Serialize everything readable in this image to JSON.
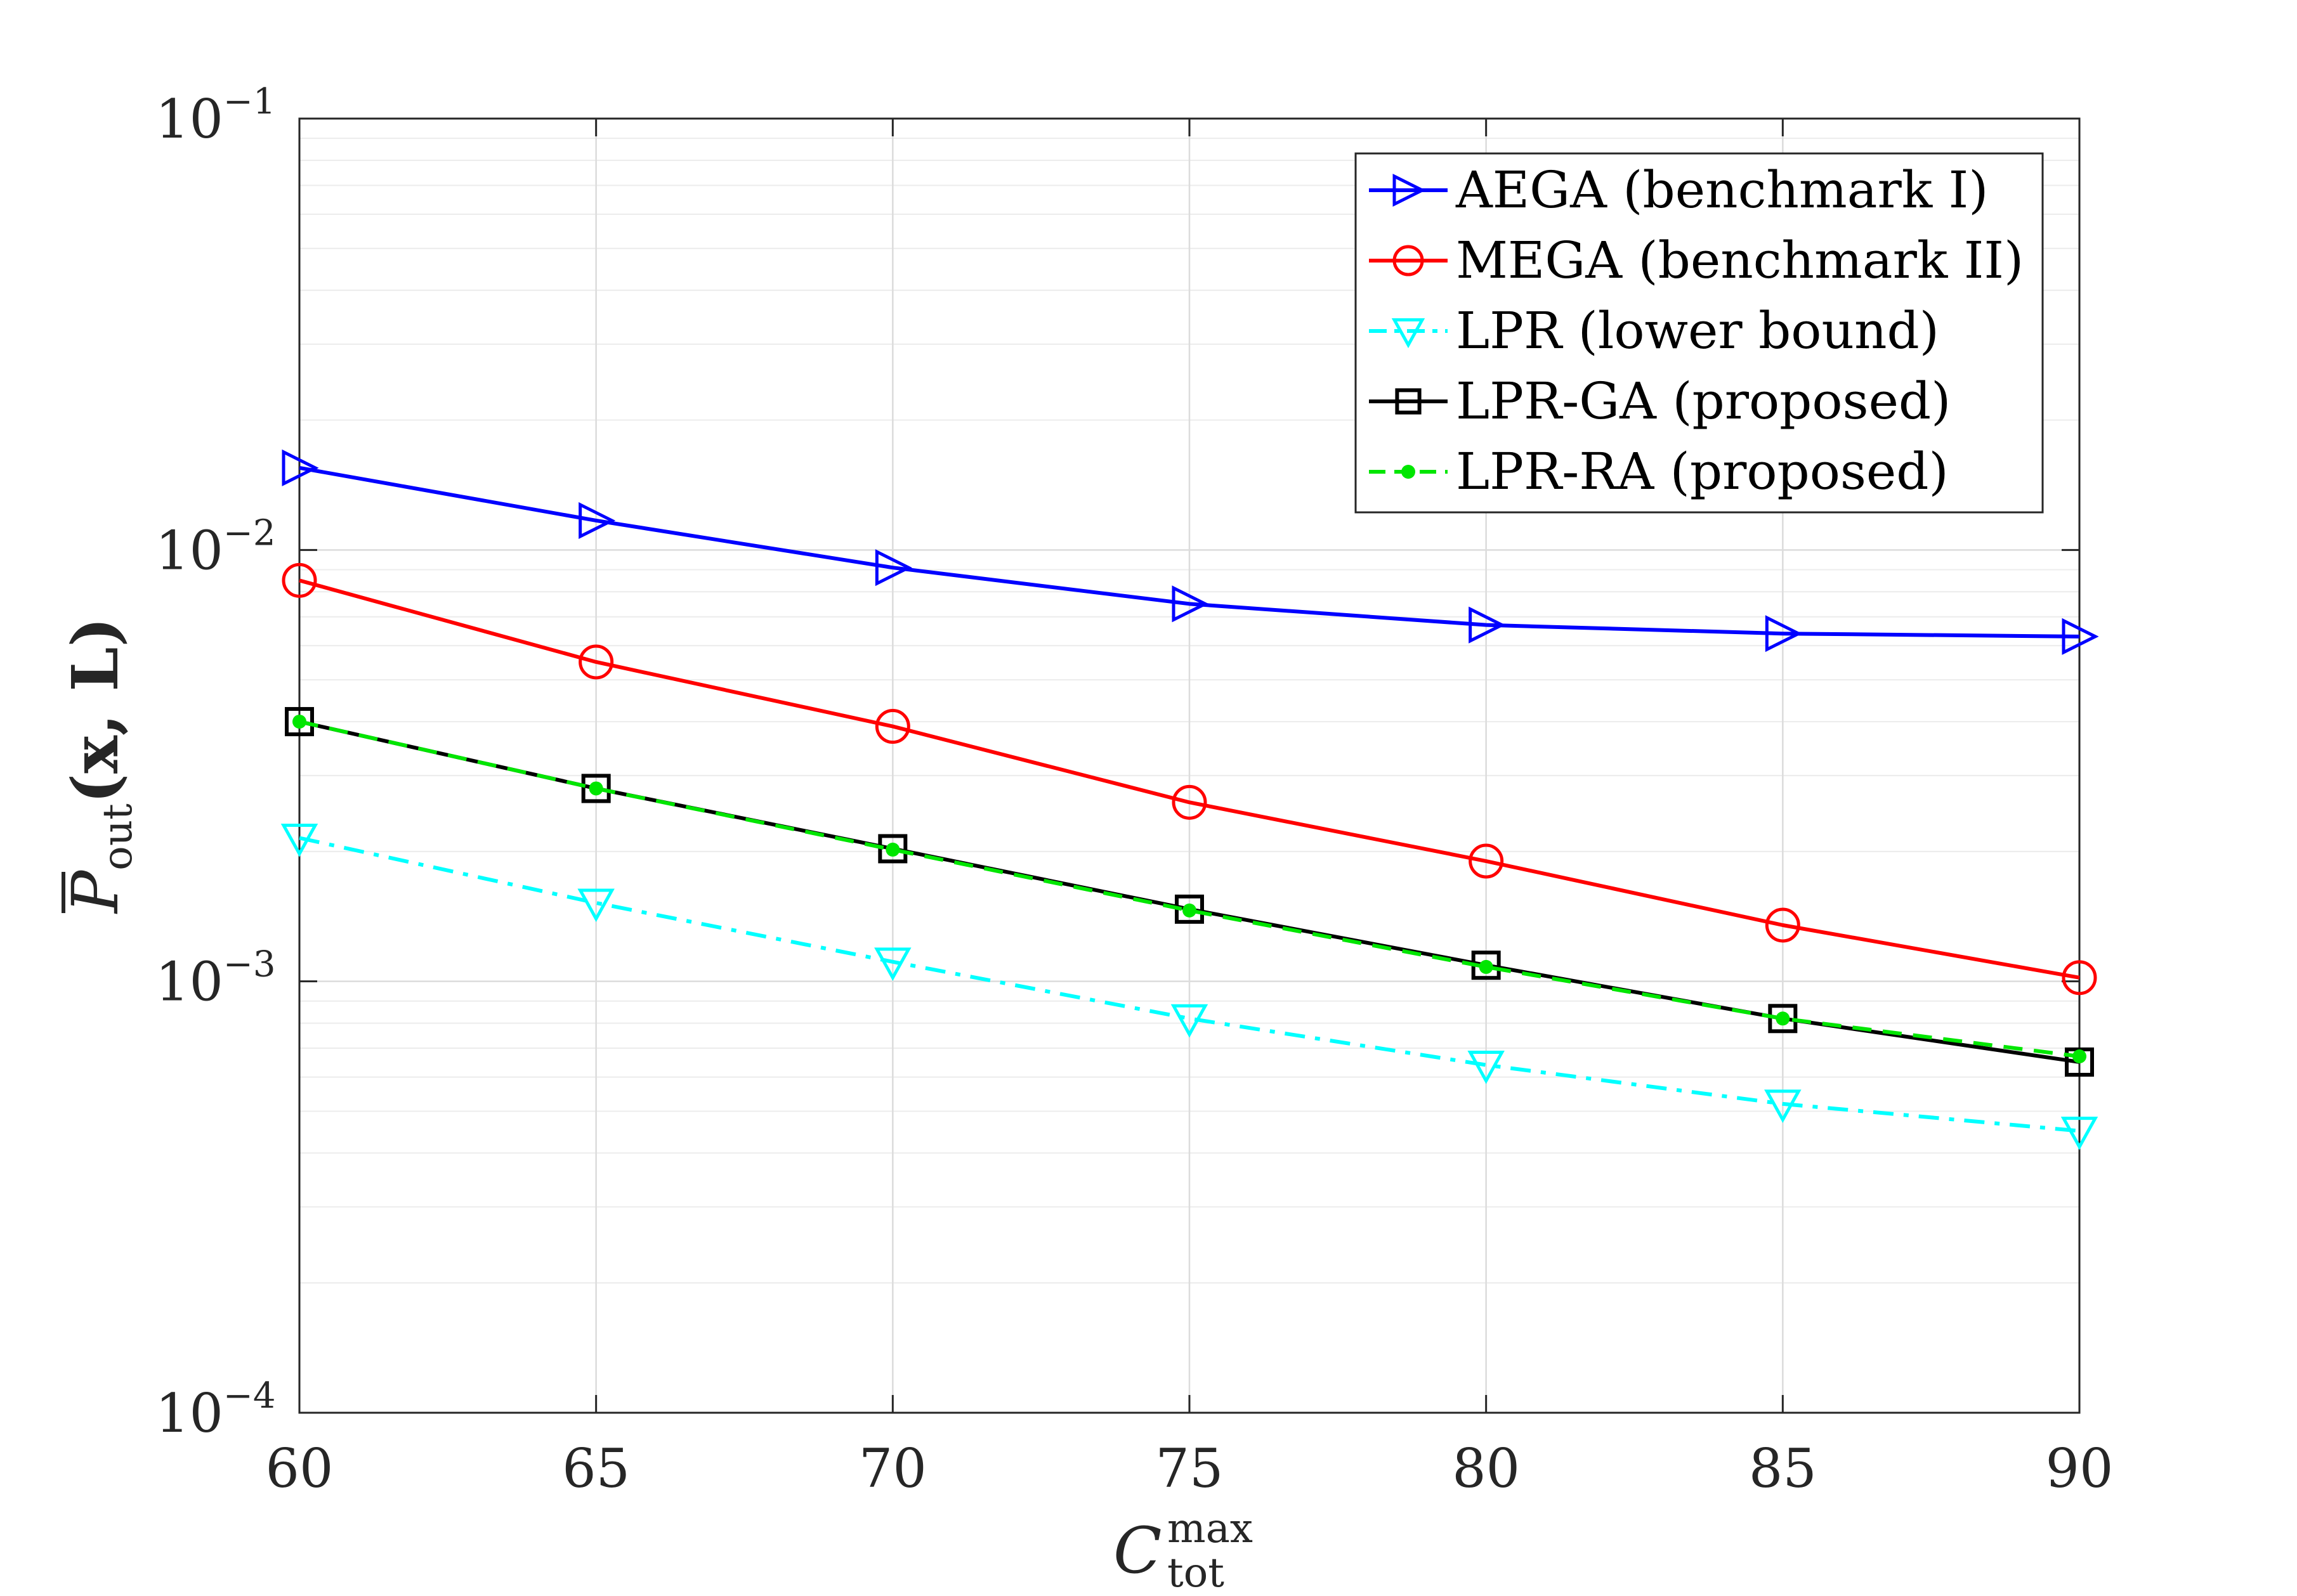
{
  "chart_data": {
    "type": "line",
    "yscale": "log",
    "x": [
      60,
      65,
      70,
      75,
      80,
      85,
      90
    ],
    "xlim": [
      60,
      90
    ],
    "ylim": [
      0.0001,
      0.1
    ],
    "grid": true,
    "legend_position": "top-right",
    "xlabel": {
      "base": "C",
      "sup": "max",
      "sub": "tot"
    },
    "ylabel": {
      "base": "P",
      "sub": "out",
      "args": "(x, L)"
    },
    "xticks": [
      "60",
      "65",
      "70",
      "75",
      "80",
      "85",
      "90"
    ],
    "yticks": [
      {
        "base": "10",
        "exp": "−1"
      },
      {
        "base": "10",
        "exp": "−2"
      },
      {
        "base": "10",
        "exp": "−3"
      },
      {
        "base": "10",
        "exp": "−4"
      }
    ],
    "series": [
      {
        "name": "AEGA (benchmark I)",
        "color": "#0000ff",
        "marker": "triangle-right",
        "dash": "solid",
        "values": [
          0.0155,
          0.0117,
          0.0091,
          0.0075,
          0.0067,
          0.0064,
          0.0063
        ]
      },
      {
        "name": "MEGA (benchmark II)",
        "color": "#ff0000",
        "marker": "circle",
        "dash": "solid",
        "values": [
          0.0085,
          0.0055,
          0.0039,
          0.0026,
          0.0019,
          0.00135,
          0.00102
        ]
      },
      {
        "name": "LPR (lower bound)",
        "color": "#00ffff",
        "marker": "triangle-down",
        "dash": "dashdot",
        "values": [
          0.00215,
          0.00152,
          0.00111,
          0.00082,
          0.00064,
          0.00052,
          0.00045
        ]
      },
      {
        "name": "LPR-GA (proposed)",
        "color": "#000000",
        "marker": "square",
        "dash": "solid",
        "values": [
          0.004,
          0.0028,
          0.00203,
          0.00147,
          0.00109,
          0.00082,
          0.00065
        ]
      },
      {
        "name": "LPR-RA (proposed)",
        "color": "#00e600",
        "marker": "dot",
        "dash": "dashed",
        "values": [
          0.004,
          0.0028,
          0.00202,
          0.00146,
          0.00108,
          0.00082,
          0.00067
        ]
      }
    ]
  }
}
